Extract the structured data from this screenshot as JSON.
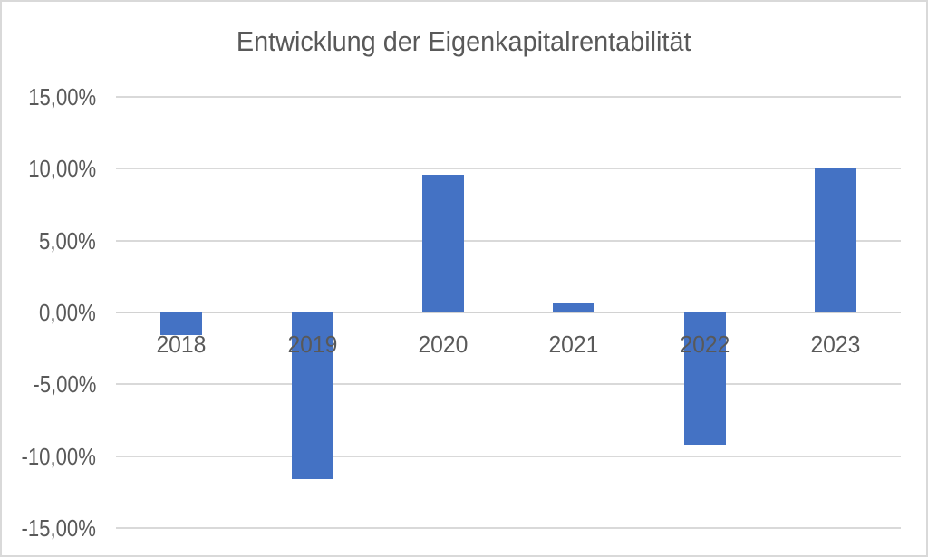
{
  "window": {
    "background_color": "#ffffff",
    "border_color": "#d9d9d9"
  },
  "chart_data": {
    "type": "bar",
    "title": "Entwicklung der Eigenkapitalrentabilität",
    "categories": [
      "2018",
      "2019",
      "2020",
      "2021",
      "2022",
      "2023"
    ],
    "values": [
      -1.6,
      -11.6,
      9.6,
      0.7,
      -9.2,
      10.1
    ],
    "unit": "%",
    "xlabel": "",
    "ylabel": "",
    "ylim": [
      -15,
      15
    ],
    "ytick_values": [
      15,
      10,
      5,
      0,
      -5,
      -10,
      -15
    ],
    "ytick_labels": [
      "15,00%",
      "10,00%",
      "5,00%",
      "0,00%",
      "-5,00%",
      "-10,00%",
      "-15,00%"
    ],
    "grid": true,
    "legend": false,
    "bar_color": "#4472c4",
    "gridline_color": "#d9d9d9",
    "text_color": "#595959"
  }
}
